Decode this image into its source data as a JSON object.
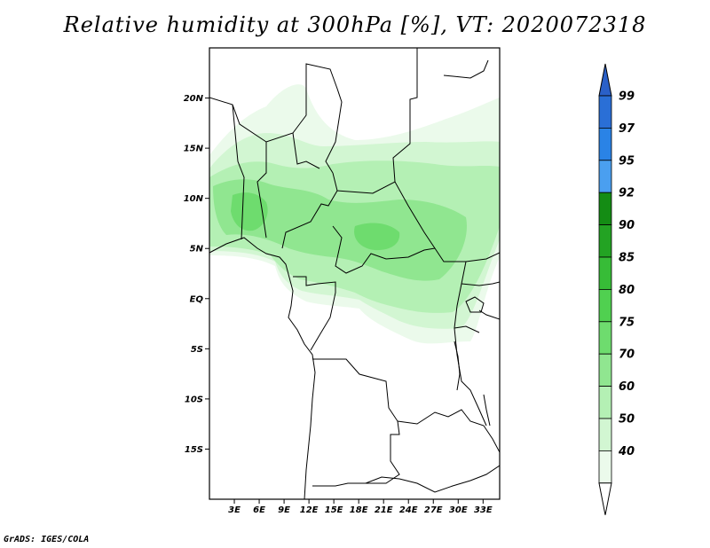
{
  "title": "Relative humidity at 300hPa [%], VT: 2020072318",
  "credit": "GrADS: IGES/COLA",
  "map": {
    "variable": "Relative humidity",
    "level": "300hPa",
    "units": "%",
    "valid_time": "2020072318",
    "lon_range": [
      0,
      35
    ],
    "lat_range": [
      -20,
      25
    ],
    "lat_ticks": [
      {
        "value": 20,
        "label": "20N"
      },
      {
        "value": 15,
        "label": "15N"
      },
      {
        "value": 10,
        "label": "10N"
      },
      {
        "value": 5,
        "label": "5N"
      },
      {
        "value": 0,
        "label": "EQ"
      },
      {
        "value": -5,
        "label": "5S"
      },
      {
        "value": -10,
        "label": "10S"
      },
      {
        "value": -15,
        "label": "15S"
      }
    ],
    "lon_ticks": [
      {
        "value": 3,
        "label": "3E"
      },
      {
        "value": 6,
        "label": "6E"
      },
      {
        "value": 9,
        "label": "9E"
      },
      {
        "value": 12,
        "label": "12E"
      },
      {
        "value": 15,
        "label": "15E"
      },
      {
        "value": 18,
        "label": "18E"
      },
      {
        "value": 21,
        "label": "21E"
      },
      {
        "value": 24,
        "label": "24E"
      },
      {
        "value": 27,
        "label": "27E"
      },
      {
        "value": 30,
        "label": "30E"
      },
      {
        "value": 33,
        "label": "33E"
      }
    ]
  },
  "colorbar": {
    "levels": [
      {
        "label": "99",
        "color": "#2a6fd6"
      },
      {
        "label": "97",
        "color": "#2a83e6"
      },
      {
        "label": "95",
        "color": "#4a9ff0"
      },
      {
        "label": "92",
        "color": "#148c14"
      },
      {
        "label": "90",
        "color": "#23a323"
      },
      {
        "label": "85",
        "color": "#37bc37"
      },
      {
        "label": "80",
        "color": "#50d050"
      },
      {
        "label": "75",
        "color": "#6edc6e"
      },
      {
        "label": "70",
        "color": "#90e690"
      },
      {
        "label": "60",
        "color": "#b4f0b4"
      },
      {
        "label": "50",
        "color": "#d2f6d2"
      },
      {
        "label": "40",
        "color": "#ebfaeb"
      }
    ],
    "top_color": "#2a60c8",
    "bottom_color": "#ffffff"
  }
}
